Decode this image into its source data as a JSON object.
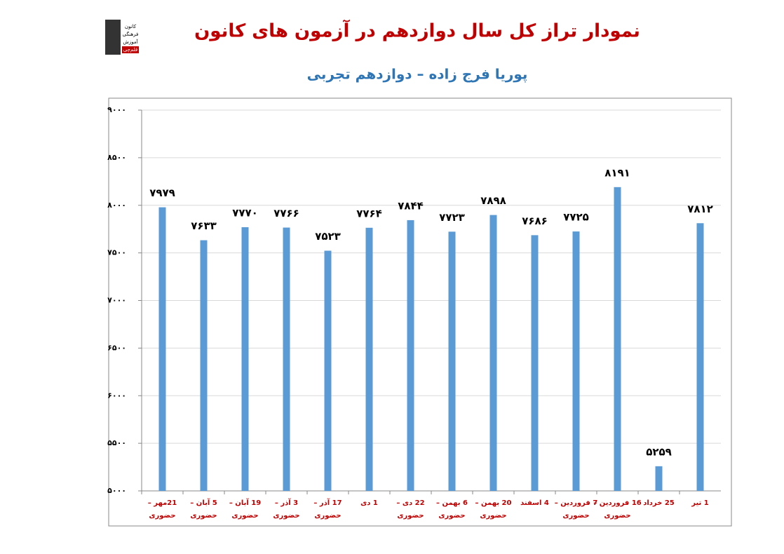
{
  "logo": {
    "lines": [
      "کانون",
      "فرهنگی",
      "آموزش",
      "قلم‌چی"
    ]
  },
  "chart_data": {
    "type": "bar",
    "title": "نمودار تراز کل سال دوازدهم در آزمون های کانون",
    "subtitle": "پوریا فرج زاده – دوازدهم تجربی",
    "categories": [
      [
        "21مهر –",
        "حضوری"
      ],
      [
        "5 آبان –",
        "حضوری"
      ],
      [
        "19 آبان –",
        "حضوری"
      ],
      [
        "3 آذر –",
        "حضوری"
      ],
      [
        "17 آذر –",
        "حضوری"
      ],
      [
        "1 دی"
      ],
      [
        "22 دی –",
        "حضوری"
      ],
      [
        "6 بهمن –",
        "حضوری"
      ],
      [
        "20 بهمن –",
        "حضوری"
      ],
      [
        "4 اسفند"
      ],
      [
        "7 فروردین –",
        "حضوری"
      ],
      [
        "16 فروردین –",
        "حضوری"
      ],
      [
        "25 خرداد"
      ],
      [
        "1 تیر"
      ]
    ],
    "values": [
      7979,
      7633,
      7770,
      7766,
      7523,
      7764,
      7844,
      7723,
      7898,
      7686,
      7725,
      8191,
      5259,
      7812
    ],
    "value_labels": [
      "۷۹۷۹",
      "۷۶۳۳",
      "۷۷۷۰",
      "۷۷۶۶",
      "۷۵۲۳",
      "۷۷۶۴",
      "۷۸۴۴",
      "۷۷۲۳",
      "۷۸۹۸",
      "۷۶۸۶",
      "۷۷۲۵",
      "۸۱۹۱",
      "۵۲۵۹",
      "۷۸۱۲"
    ],
    "color": "#5b9bd5",
    "ylim": [
      5000,
      9000
    ],
    "yticks": [
      {
        "value": 5000,
        "label": "۵۰۰۰"
      },
      {
        "value": 5500,
        "label": "۵۵۰۰"
      },
      {
        "value": 6000,
        "label": "۶۰۰۰"
      },
      {
        "value": 6500,
        "label": "۶۵۰۰"
      },
      {
        "value": 7000,
        "label": "۷۰۰۰"
      },
      {
        "value": 7500,
        "label": "۷۵۰۰"
      },
      {
        "value": 8000,
        "label": "۸۰۰۰"
      },
      {
        "value": 8500,
        "label": "۸۵۰۰"
      },
      {
        "value": 9000,
        "label": "۹۰۰۰"
      }
    ],
    "grid": true
  }
}
